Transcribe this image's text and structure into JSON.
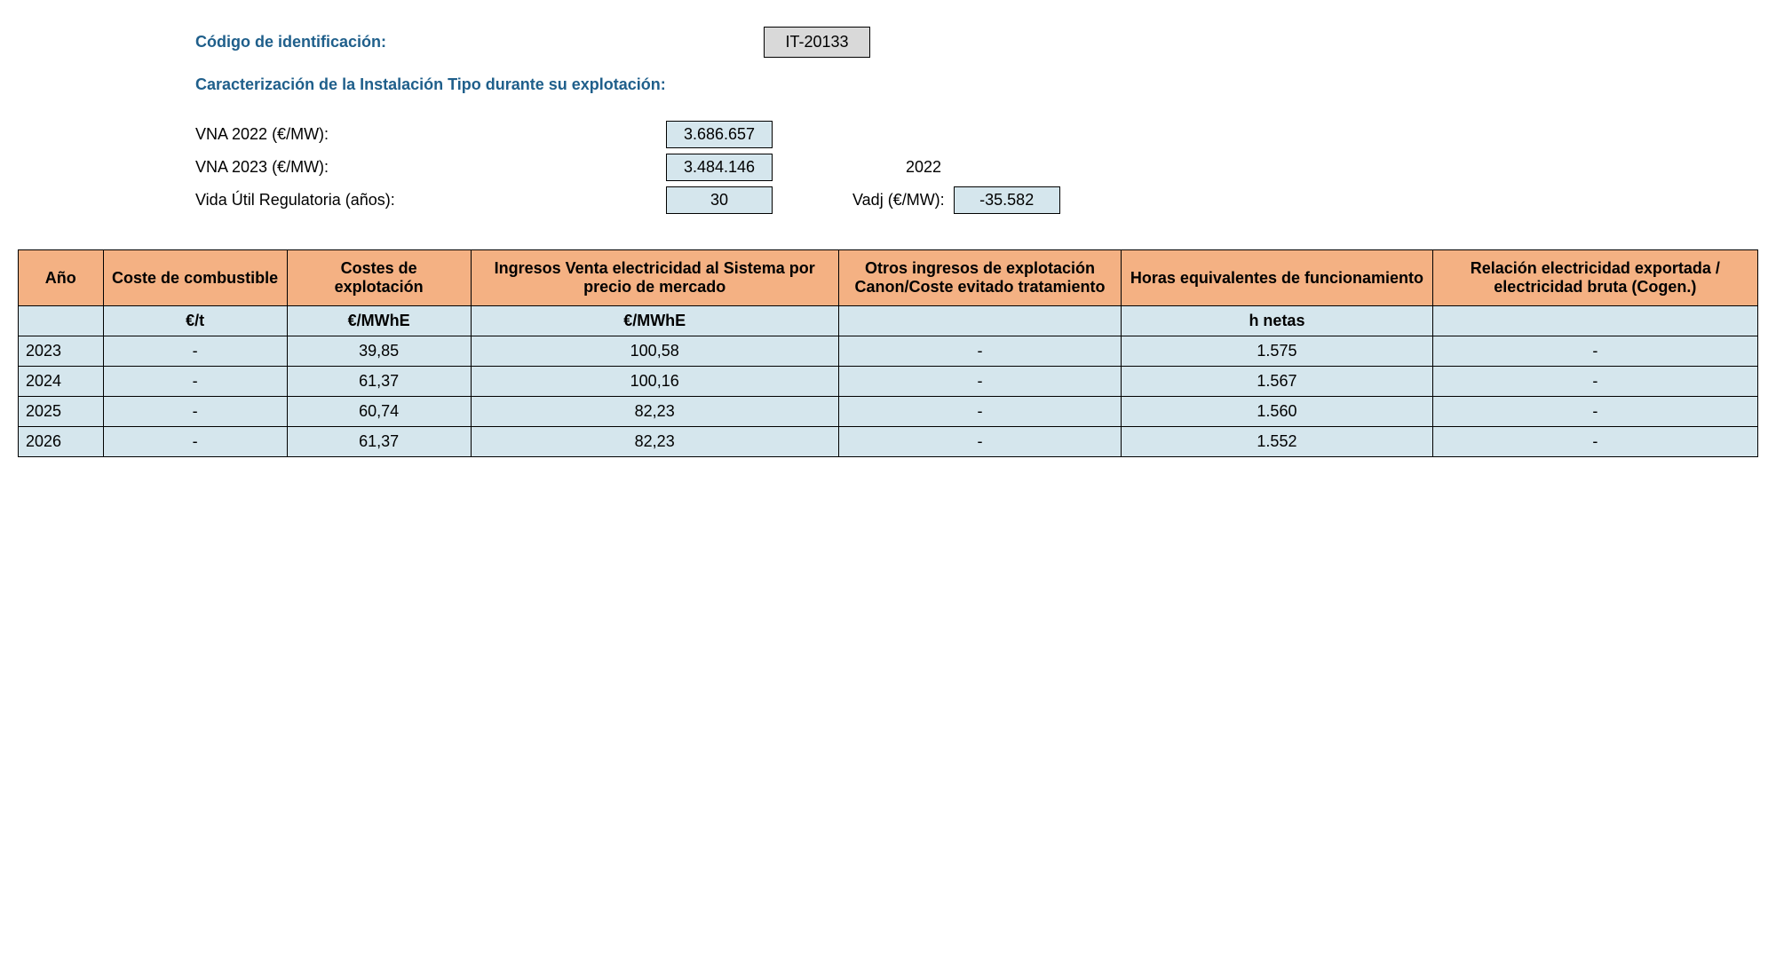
{
  "header": {
    "code_label": "Código de identificación:",
    "code_value": "IT-20133",
    "section_title": "Caracterización de la Instalación Tipo durante su explotación:"
  },
  "info": {
    "vna_2022_label": "VNA 2022 (€/MW):",
    "vna_2022_value": "3.686.657",
    "vna_2023_label": "VNA 2023 (€/MW):",
    "vna_2023_value": "3.484.146",
    "vida_util_label": "Vida Útil Regulatoria (años):",
    "vida_util_value": "30",
    "year_ref": "2022",
    "vadj_label": "Vadj (€/MW):",
    "vadj_value": "-35.582"
  },
  "table": {
    "headers": {
      "year": "Año",
      "fuel_cost": "Coste de combustible",
      "exploit_cost": "Costes de explotación",
      "income": "Ingresos Venta electricidad al Sistema por precio de mercado",
      "other_income": "Otros ingresos de explotación Canon/Coste evitado tratamiento",
      "hours": "Horas equivalentes de funcionamiento",
      "ratio": "Relación electricidad exportada / electricidad bruta (Cogen.)"
    },
    "units": {
      "year": "",
      "fuel_cost": "€/t",
      "exploit_cost": "€/MWhE",
      "income": "€/MWhE",
      "other_income": "",
      "hours": "h netas",
      "ratio": ""
    },
    "rows": [
      {
        "year": "2023",
        "fuel_cost": "-",
        "exploit_cost": "39,85",
        "income": "100,58",
        "other_income": "-",
        "hours": "1.575",
        "ratio": "-"
      },
      {
        "year": "2024",
        "fuel_cost": "-",
        "exploit_cost": "61,37",
        "income": "100,16",
        "other_income": "-",
        "hours": "1.567",
        "ratio": "-"
      },
      {
        "year": "2025",
        "fuel_cost": "-",
        "exploit_cost": "60,74",
        "income": "82,23",
        "other_income": "-",
        "hours": "1.560",
        "ratio": "-"
      },
      {
        "year": "2026",
        "fuel_cost": "-",
        "exploit_cost": "61,37",
        "income": "82,23",
        "other_income": "-",
        "hours": "1.552",
        "ratio": "-"
      }
    ]
  },
  "colors": {
    "header_bg": "#f4b183",
    "cell_bg": "#d5e6ed",
    "code_bg": "#d9d9d9",
    "title_color": "#1f5f8b",
    "border_color": "#000000"
  }
}
